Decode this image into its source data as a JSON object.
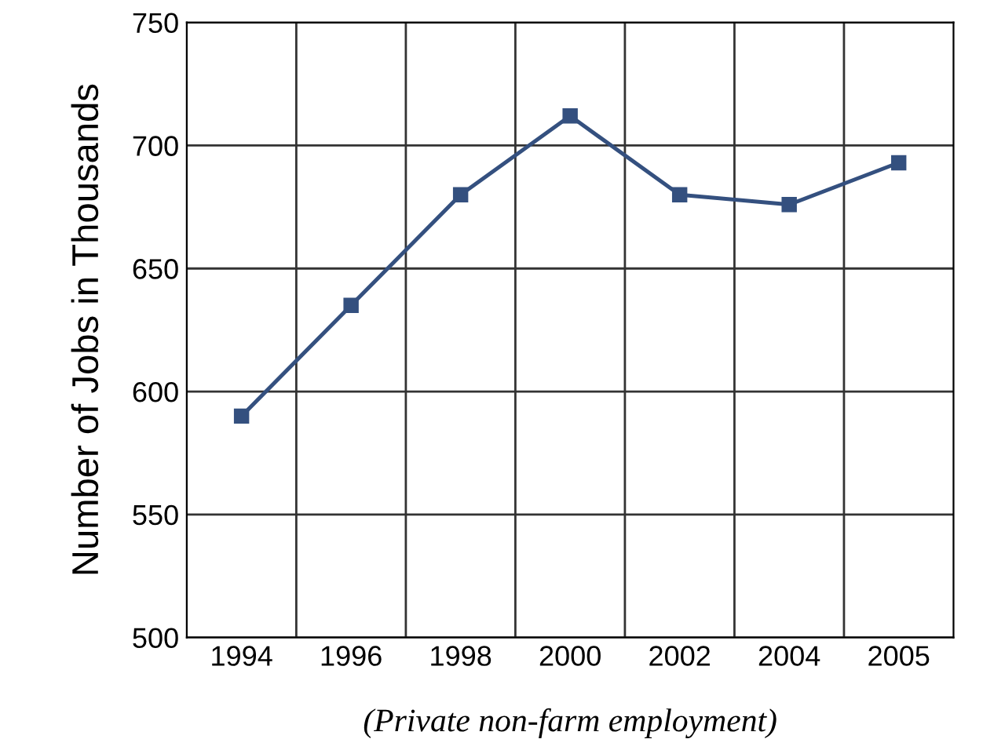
{
  "chart_data": {
    "type": "line",
    "ylabel": "Number of Jobs in Thousands",
    "categories": [
      "1994",
      "1996",
      "1998",
      "2000",
      "2002",
      "2004",
      "2005"
    ],
    "series": [
      {
        "color": "#34507f",
        "values": [
          590,
          635,
          680,
          712,
          680,
          676,
          693
        ]
      }
    ],
    "ylim": [
      500,
      750
    ],
    "yticks": [
      500,
      550,
      600,
      650,
      700,
      750
    ],
    "grid": true,
    "marker": "square",
    "line_style": "solid",
    "annotations": [
      "(Private non-farm employment)"
    ]
  }
}
